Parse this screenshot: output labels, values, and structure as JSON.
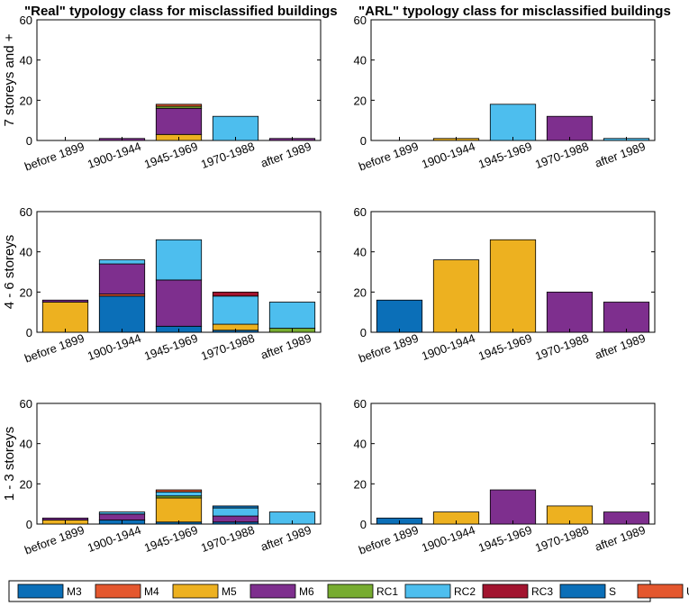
{
  "chart_data": [
    {
      "id": "real-7plus",
      "type": "bar",
      "stacked": true,
      "title": "\"Real\" typology class for misclassified buildings",
      "ylabel": "7 storeys and +",
      "ylim": [
        0,
        60
      ],
      "yticks": [
        0,
        20,
        40,
        60
      ],
      "categories": [
        "before 1899",
        "1900-1944",
        "1945-1969",
        "1970-1988",
        "after 1989"
      ],
      "series": [
        {
          "name": "M3",
          "values": [
            0,
            0,
            0,
            0,
            0
          ]
        },
        {
          "name": "M4",
          "values": [
            0,
            0,
            0,
            0,
            0
          ]
        },
        {
          "name": "M5",
          "values": [
            0,
            0,
            3,
            0,
            0
          ]
        },
        {
          "name": "M6",
          "values": [
            0,
            1,
            13,
            0,
            1
          ]
        },
        {
          "name": "RC1",
          "values": [
            0,
            0,
            1,
            0,
            0
          ]
        },
        {
          "name": "RC2",
          "values": [
            0,
            0,
            0,
            12,
            0
          ]
        },
        {
          "name": "RC3",
          "values": [
            0,
            0,
            0,
            0,
            0
          ]
        },
        {
          "name": "S",
          "values": [
            0,
            0,
            0,
            0,
            0
          ]
        },
        {
          "name": "Unclassified",
          "values": [
            0,
            0,
            1,
            0,
            0
          ]
        }
      ]
    },
    {
      "id": "arl-7plus",
      "type": "bar",
      "stacked": true,
      "title": "\"ARL\" typology class for misclassified buildings",
      "ylabel": "",
      "ylim": [
        0,
        60
      ],
      "yticks": [
        0,
        20,
        40,
        60
      ],
      "categories": [
        "before 1899",
        "1900-1944",
        "1945-1969",
        "1970-1988",
        "after 1989"
      ],
      "series": [
        {
          "name": "M3",
          "values": [
            0,
            0,
            0,
            0,
            0
          ]
        },
        {
          "name": "M5",
          "values": [
            0,
            1,
            0,
            0,
            0
          ]
        },
        {
          "name": "M6",
          "values": [
            0,
            0,
            0,
            12,
            0
          ]
        },
        {
          "name": "RC2",
          "values": [
            0,
            0,
            18,
            0,
            1
          ]
        }
      ]
    },
    {
      "id": "real-4to6",
      "type": "bar",
      "stacked": true,
      "title": "",
      "ylabel": "4 - 6 storeys",
      "ylim": [
        0,
        60
      ],
      "yticks": [
        0,
        20,
        40,
        60
      ],
      "categories": [
        "before 1899",
        "1900-1944",
        "1945-1969",
        "1970-1988",
        "after 1989"
      ],
      "series": [
        {
          "name": "M3",
          "values": [
            0,
            18,
            3,
            1,
            0
          ]
        },
        {
          "name": "M4",
          "values": [
            0,
            1,
            0,
            0,
            0
          ]
        },
        {
          "name": "M5",
          "values": [
            15,
            0,
            0,
            3,
            0
          ]
        },
        {
          "name": "M6",
          "values": [
            1,
            15,
            23,
            0,
            0
          ]
        },
        {
          "name": "RC1",
          "values": [
            0,
            0,
            0,
            0,
            2
          ]
        },
        {
          "name": "RC2",
          "values": [
            0,
            2,
            20,
            14,
            13
          ]
        },
        {
          "name": "RC3",
          "values": [
            0,
            0,
            0,
            2,
            0
          ]
        },
        {
          "name": "S",
          "values": [
            0,
            0,
            0,
            0,
            0
          ]
        },
        {
          "name": "Unclassified",
          "values": [
            0,
            0,
            0,
            0,
            0
          ]
        }
      ]
    },
    {
      "id": "arl-4to6",
      "type": "bar",
      "stacked": true,
      "title": "",
      "ylabel": "",
      "ylim": [
        0,
        60
      ],
      "yticks": [
        0,
        20,
        40,
        60
      ],
      "categories": [
        "before 1899",
        "1900-1944",
        "1945-1969",
        "1970-1988",
        "after 1989"
      ],
      "series": [
        {
          "name": "M3",
          "values": [
            16,
            0,
            0,
            0,
            0
          ]
        },
        {
          "name": "M5",
          "values": [
            0,
            36,
            46,
            0,
            0
          ]
        },
        {
          "name": "M6",
          "values": [
            0,
            0,
            0,
            20,
            15
          ]
        }
      ]
    },
    {
      "id": "real-1to3",
      "type": "bar",
      "stacked": true,
      "title": "",
      "ylabel": "1 - 3 storeys",
      "ylim": [
        0,
        60
      ],
      "yticks": [
        0,
        20,
        40,
        60
      ],
      "categories": [
        "before 1899",
        "1900-1944",
        "1945-1969",
        "1970-1988",
        "after 1989"
      ],
      "series": [
        {
          "name": "M3",
          "values": [
            0,
            2,
            1,
            1,
            0
          ]
        },
        {
          "name": "M4",
          "values": [
            0,
            0,
            0,
            0,
            0
          ]
        },
        {
          "name": "M5",
          "values": [
            2,
            0,
            12,
            0,
            0
          ]
        },
        {
          "name": "M6",
          "values": [
            1,
            3,
            0,
            3,
            0
          ]
        },
        {
          "name": "RC1",
          "values": [
            0,
            0,
            1,
            0,
            0
          ]
        },
        {
          "name": "RC2",
          "values": [
            0,
            1,
            2,
            4,
            6
          ]
        },
        {
          "name": "RC3",
          "values": [
            0,
            0,
            0,
            0,
            0
          ]
        },
        {
          "name": "S",
          "values": [
            0,
            0,
            0,
            1,
            0
          ]
        },
        {
          "name": "Unclassified",
          "values": [
            0,
            0,
            1,
            0,
            0
          ]
        }
      ]
    },
    {
      "id": "arl-1to3",
      "type": "bar",
      "stacked": true,
      "title": "",
      "ylabel": "",
      "ylim": [
        0,
        60
      ],
      "yticks": [
        0,
        20,
        40,
        60
      ],
      "categories": [
        "before 1899",
        "1900-1944",
        "1945-1969",
        "1970-1988",
        "after 1989"
      ],
      "series": [
        {
          "name": "M3",
          "values": [
            3,
            0,
            0,
            0,
            0
          ]
        },
        {
          "name": "M5",
          "values": [
            0,
            6,
            0,
            9,
            0
          ]
        },
        {
          "name": "M6",
          "values": [
            0,
            0,
            17,
            0,
            6
          ]
        }
      ]
    }
  ],
  "colors": {
    "M3": "#0b6fb8",
    "M4": "#e4572e",
    "M5": "#edb120",
    "M6": "#7e2f8e",
    "RC1": "#77ac30",
    "RC2": "#4dbeee",
    "RC3": "#a2142f",
    "S": "#0b6fb8",
    "Unclassified": "#e4572e"
  },
  "legend": {
    "items": [
      "M3",
      "M4",
      "M5",
      "M6",
      "RC1",
      "RC2",
      "RC3",
      "S",
      "Unclassified"
    ]
  }
}
